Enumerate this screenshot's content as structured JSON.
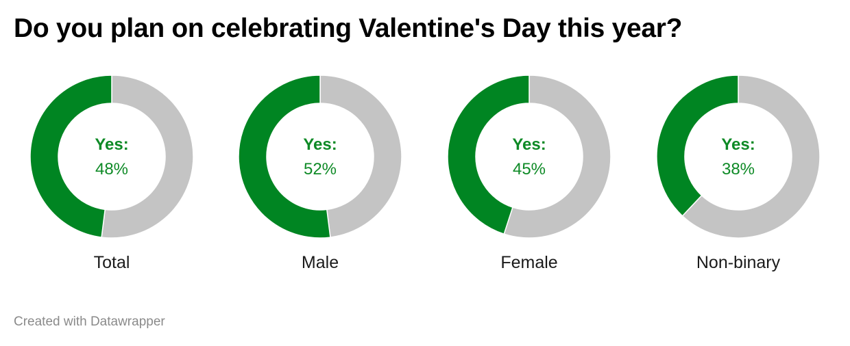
{
  "chart_data": {
    "type": "pie",
    "title": "Do you plan on celebrating Valentine's Day this year?",
    "center_label": "Yes:",
    "charts": [
      {
        "category": "Total",
        "yes": 48,
        "yes_text": "48%"
      },
      {
        "category": "Male",
        "yes": 52,
        "yes_text": "52%"
      },
      {
        "category": "Female",
        "yes": 45,
        "yes_text": "45%"
      },
      {
        "category": "Non-binary",
        "yes": 38,
        "yes_text": "38%"
      }
    ],
    "colors": {
      "yes": "#008522",
      "rest": "#c4c4c4",
      "label": "#0e8a26"
    }
  },
  "footer": "Created with Datawrapper"
}
